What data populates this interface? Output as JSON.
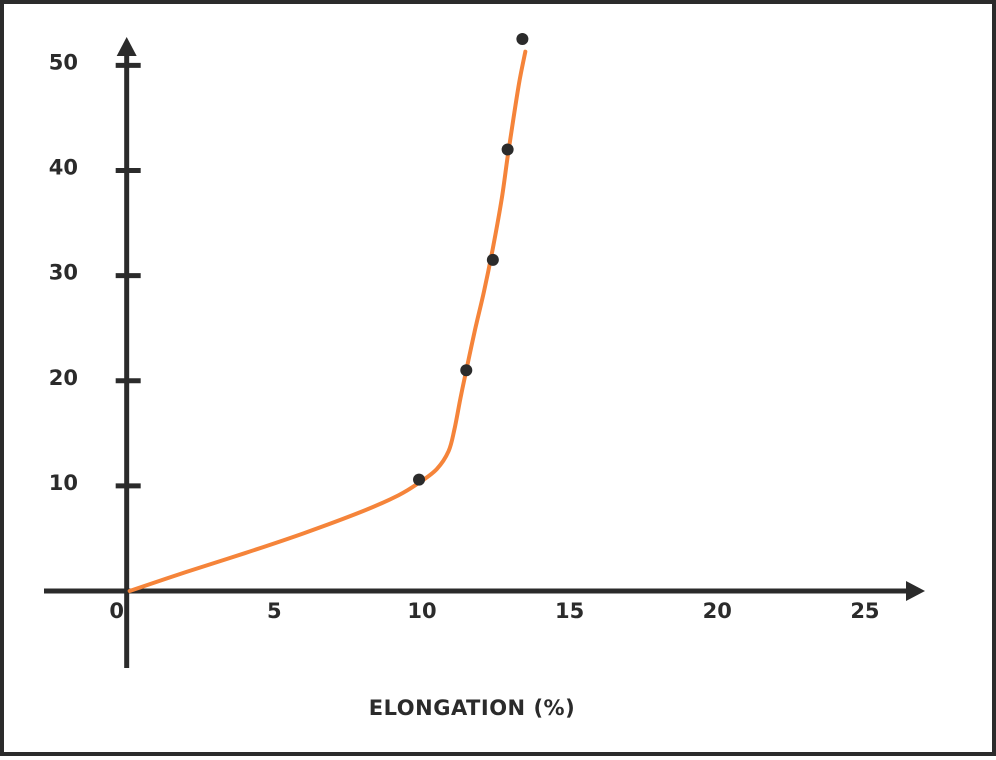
{
  "chart_data": {
    "type": "line",
    "title": "",
    "xlabel": "ELONGATION (%)",
    "ylabel": "",
    "xlim": [
      -2.8,
      27.0
    ],
    "ylim": [
      -7.7,
      52.6
    ],
    "x_ticks": [
      {
        "value": 0,
        "label": "0"
      },
      {
        "value": 5,
        "label": "5"
      },
      {
        "value": 10,
        "label": "10"
      },
      {
        "value": 15,
        "label": "15"
      },
      {
        "value": 20,
        "label": "20"
      },
      {
        "value": 25,
        "label": "25"
      }
    ],
    "y_ticks": [
      {
        "value": 10,
        "label": "10"
      },
      {
        "value": 20,
        "label": "20"
      },
      {
        "value": 30,
        "label": "30"
      },
      {
        "value": 40,
        "label": "40"
      },
      {
        "value": 50,
        "label": "50"
      }
    ],
    "series": [
      {
        "curve": {
          "x": [
            0.1,
            2.0,
            4.0,
            6.0,
            8.0,
            9.2,
            9.9,
            10.5,
            10.9,
            11.1,
            11.3,
            11.5,
            11.8,
            12.1,
            12.4,
            12.7,
            12.9,
            13.1,
            13.3,
            13.5
          ],
          "y": [
            0.0,
            1.8,
            3.6,
            5.5,
            7.6,
            9.1,
            10.3,
            11.6,
            13.3,
            15.4,
            18.3,
            21.0,
            24.9,
            28.5,
            32.6,
            37.3,
            41.3,
            45.0,
            48.5,
            51.3
          ]
        },
        "points": {
          "x": [
            9.9,
            11.5,
            12.4,
            12.9,
            13.4
          ],
          "y": [
            10.6,
            21.0,
            31.5,
            42.0,
            52.5
          ]
        },
        "color": "#f5843a",
        "point_color": "#2b2b2b"
      }
    ],
    "grid": false,
    "legend": "none"
  }
}
